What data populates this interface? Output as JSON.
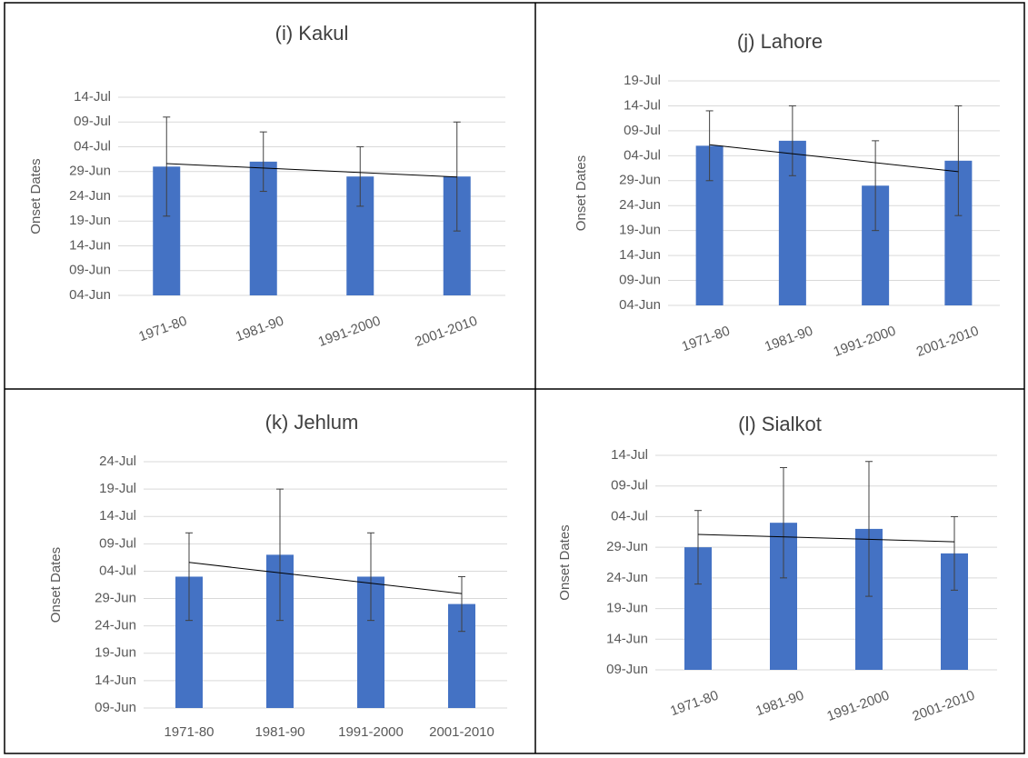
{
  "chart_data": [
    {
      "type": "bar",
      "title": "(i) Kakul",
      "y_label": "Onset Dates",
      "categories": [
        "1971-80",
        "1981-90",
        "1991-2000",
        "2001-2010"
      ],
      "values": [
        181,
        182,
        179,
        179
      ],
      "errors": [
        10,
        6,
        6,
        11
      ],
      "color": "#4472c4",
      "ylim": [
        155,
        195
      ],
      "yticks": [
        {
          "value": 155,
          "label": "04-Jun"
        },
        {
          "value": 160,
          "label": "09-Jun"
        },
        {
          "value": 165,
          "label": "14-Jun"
        },
        {
          "value": 170,
          "label": "19-Jun"
        },
        {
          "value": 175,
          "label": "24-Jun"
        },
        {
          "value": 180,
          "label": "29-Jun"
        },
        {
          "value": 185,
          "label": "04-Jul"
        },
        {
          "value": 190,
          "label": "09-Jul"
        },
        {
          "value": 195,
          "label": "14-Jul"
        }
      ],
      "grid": true,
      "trendline": true
    },
    {
      "type": "bar",
      "title": "(j) Lahore",
      "y_label": "Onset Dates",
      "categories": [
        "1971-80",
        "1981-90",
        "1991-2000",
        "2001-2010"
      ],
      "values": [
        187,
        188,
        179,
        184
      ],
      "errors": [
        7,
        7,
        9,
        11
      ],
      "color": "#4472c4",
      "ylim": [
        155,
        200
      ],
      "yticks": [
        {
          "value": 155,
          "label": "04-Jun"
        },
        {
          "value": 160,
          "label": "09-Jun"
        },
        {
          "value": 165,
          "label": "14-Jun"
        },
        {
          "value": 170,
          "label": "19-Jun"
        },
        {
          "value": 175,
          "label": "24-Jun"
        },
        {
          "value": 180,
          "label": "29-Jun"
        },
        {
          "value": 185,
          "label": "04-Jul"
        },
        {
          "value": 190,
          "label": "09-Jul"
        },
        {
          "value": 195,
          "label": "14-Jul"
        },
        {
          "value": 200,
          "label": "19-Jul"
        }
      ],
      "grid": true,
      "trendline": true
    },
    {
      "type": "bar",
      "title": "(k) Jehlum",
      "y_label": "Onset Dates",
      "categories": [
        "1971-80",
        "1981-90",
        "1991-2000",
        "2001-2010"
      ],
      "values": [
        184,
        188,
        184,
        179
      ],
      "errors": [
        8,
        12,
        8,
        5
      ],
      "color": "#4472c4",
      "ylim": [
        160,
        205
      ],
      "yticks": [
        {
          "value": 160,
          "label": "09-Jun"
        },
        {
          "value": 165,
          "label": "14-Jun"
        },
        {
          "value": 170,
          "label": "19-Jun"
        },
        {
          "value": 175,
          "label": "24-Jun"
        },
        {
          "value": 180,
          "label": "29-Jun"
        },
        {
          "value": 185,
          "label": "04-Jul"
        },
        {
          "value": 190,
          "label": "09-Jul"
        },
        {
          "value": 195,
          "label": "14-Jul"
        },
        {
          "value": 200,
          "label": "19-Jul"
        },
        {
          "value": 205,
          "label": "24-Jul"
        }
      ],
      "grid": true,
      "trendline": true
    },
    {
      "type": "bar",
      "title": "(l) Sialkot",
      "y_label": "Onset Dates",
      "categories": [
        "1971-80",
        "1981-90",
        "1991-2000",
        "2001-2010"
      ],
      "values": [
        180,
        184,
        183,
        179
      ],
      "errors": [
        6,
        9,
        11,
        6
      ],
      "color": "#4472c4",
      "ylim": [
        160,
        195
      ],
      "yticks": [
        {
          "value": 160,
          "label": "09-Jun"
        },
        {
          "value": 165,
          "label": "14-Jun"
        },
        {
          "value": 170,
          "label": "19-Jun"
        },
        {
          "value": 175,
          "label": "24-Jun"
        },
        {
          "value": 180,
          "label": "29-Jun"
        },
        {
          "value": 185,
          "label": "04-Jul"
        },
        {
          "value": 190,
          "label": "09-Jul"
        },
        {
          "value": 195,
          "label": "14-Jul"
        }
      ],
      "grid": true,
      "trendline": true
    }
  ]
}
